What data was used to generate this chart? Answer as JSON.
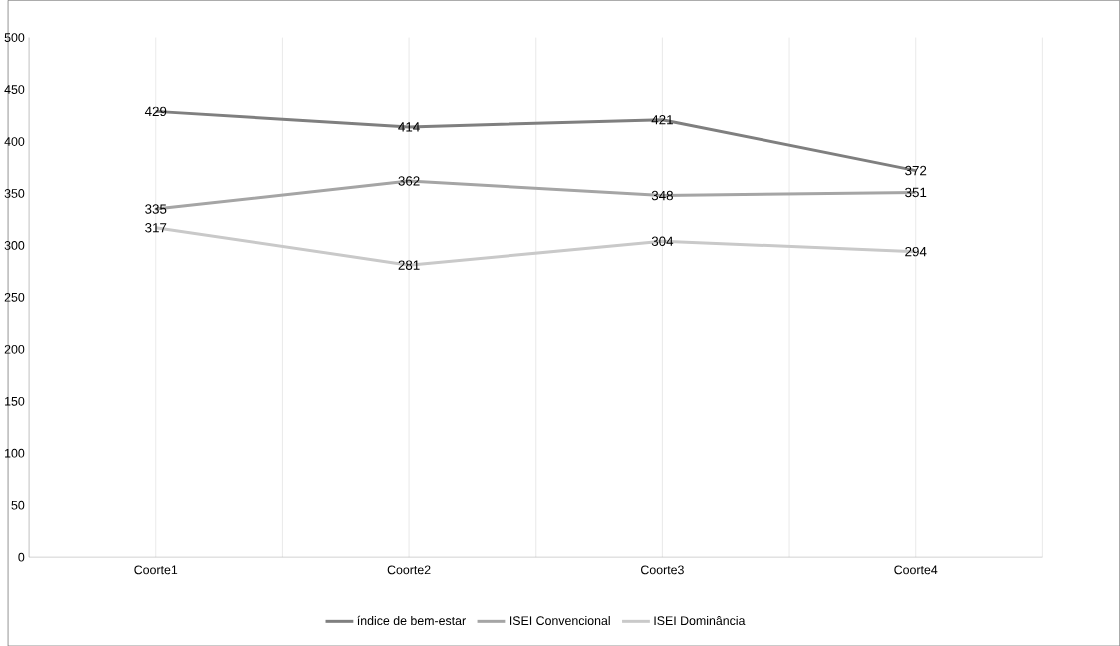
{
  "chart_data": {
    "type": "line",
    "categories": [
      "Coorte1",
      "Coorte2",
      "Coorte3",
      "Coorte4"
    ],
    "series": [
      {
        "name": "índice de bem-estar",
        "color": "#7f7f7f",
        "values": [
          429,
          414,
          421,
          372
        ]
      },
      {
        "name": "ISEI Convencional",
        "color": "#a5a5a5",
        "values": [
          335,
          362,
          348,
          351
        ]
      },
      {
        "name": "ISEI Dominância",
        "color": "#c9c9c9",
        "values": [
          317,
          281,
          304,
          294
        ]
      }
    ],
    "ylim": [
      0,
      500
    ],
    "yticks": [
      0,
      50,
      100,
      150,
      200,
      250,
      300,
      350,
      400,
      450,
      500
    ],
    "grid": "x",
    "legend": "bottom",
    "data_labels": true,
    "marker": "none",
    "line_style": "solid"
  }
}
